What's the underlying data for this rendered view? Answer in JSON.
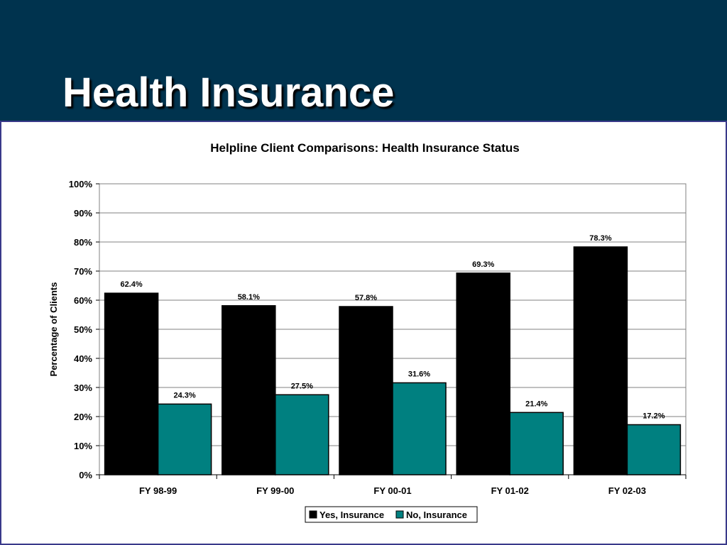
{
  "slide": {
    "title": "Health Insurance"
  },
  "colors": {
    "header_bg": "#00334e",
    "yes": "#000000",
    "no": "#008080"
  },
  "chart_data": {
    "type": "bar",
    "title": "Helpline Client Comparisons: Health Insurance Status",
    "xlabel": "",
    "ylabel": "Percentage of Clients",
    "ylim": [
      0,
      100
    ],
    "yticks": [
      "0%",
      "10%",
      "20%",
      "30%",
      "40%",
      "50%",
      "60%",
      "70%",
      "80%",
      "90%",
      "100%"
    ],
    "categories": [
      "FY 98-99",
      "FY 99-00",
      "FY 00-01",
      "FY 01-02",
      "FY 02-03"
    ],
    "series": [
      {
        "name": "Yes, Insurance",
        "values": [
          62.4,
          58.1,
          57.8,
          69.3,
          78.3
        ],
        "labels": [
          "62.4%",
          "58.1%",
          "57.8%",
          "69.3%",
          "78.3%"
        ]
      },
      {
        "name": "No, Insurance",
        "values": [
          24.3,
          27.5,
          31.6,
          21.4,
          17.2
        ],
        "labels": [
          "24.3%",
          "27.5%",
          "31.6%",
          "21.4%",
          "17.2%"
        ]
      }
    ],
    "grid": true,
    "legend": "bottom"
  }
}
